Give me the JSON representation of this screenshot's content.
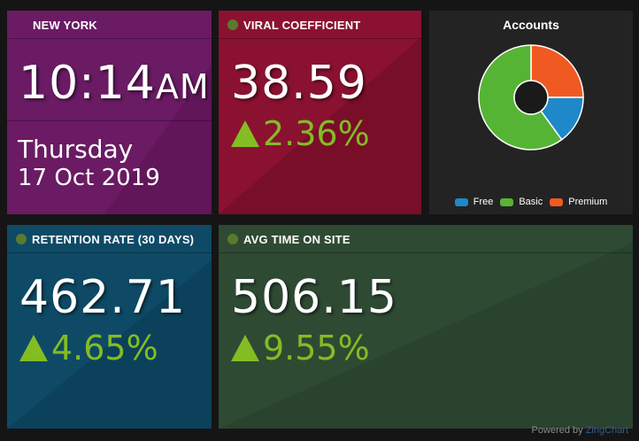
{
  "clock": {
    "city": "NEW YORK",
    "time": "10:14",
    "ampm": "AM",
    "weekday": "Thursday",
    "date": "17 Oct 2019"
  },
  "viral": {
    "title": "VIRAL COEFFICIENT",
    "value": "38.59",
    "delta": "2.36%",
    "delta_sign": "▲"
  },
  "accounts": {
    "title": "Accounts",
    "legend": [
      "Free",
      "Basic",
      "Premium"
    ]
  },
  "retention": {
    "title": "RETENTION RATE (30 DAYS)",
    "value": "462.71",
    "delta": "4.65%",
    "delta_sign": "▲"
  },
  "avgtime": {
    "title": "AVG TIME ON SITE",
    "value": "506.15",
    "delta": "9.55%",
    "delta_sign": "▲"
  },
  "footer": {
    "powered_label": "Powered by",
    "brand": "ZingChart"
  },
  "colors": {
    "purple": "#6a1b63",
    "crimson": "#8a1230",
    "dark_panel": "#232323",
    "teal": "#0e4a66",
    "green_panel": "#2f4a33",
    "delta_green": "#84bc24",
    "free": "#1e88c9",
    "basic": "#56b434",
    "premium": "#f05a22"
  },
  "chart_data": {
    "type": "pie",
    "title": "Accounts",
    "categories": [
      "Free",
      "Basic",
      "Premium"
    ],
    "values": [
      15,
      60,
      25
    ],
    "colors": [
      "#1e88c9",
      "#56b434",
      "#f05a22"
    ],
    "donut": true,
    "legend_position": "bottom"
  }
}
